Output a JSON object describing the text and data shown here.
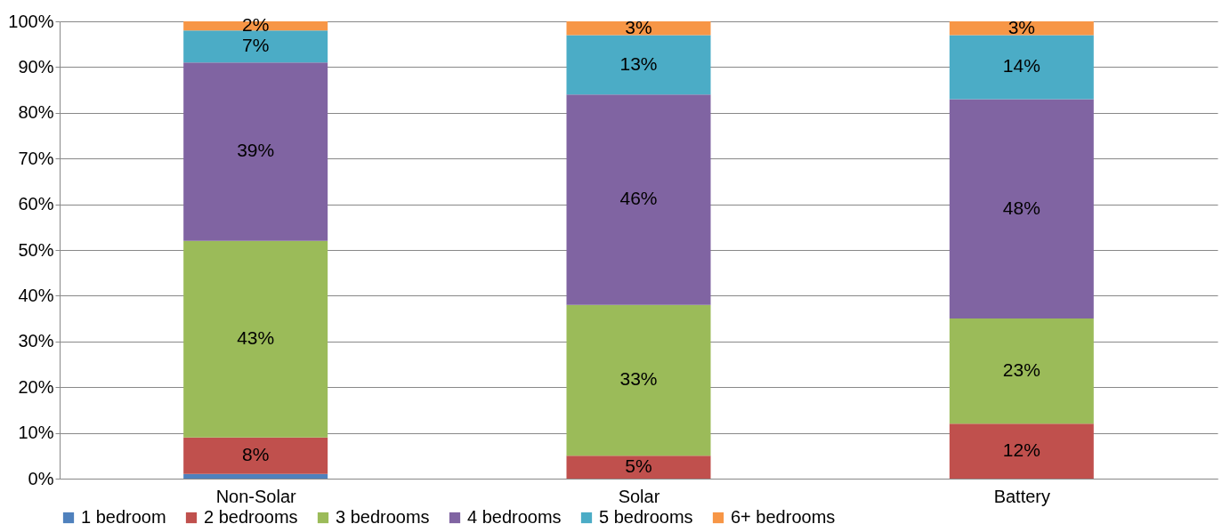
{
  "chart_data": {
    "type": "bar",
    "stacked": true,
    "categories": [
      "Non-Solar",
      "Solar",
      "Battery"
    ],
    "series": [
      {
        "name": "1 bedroom",
        "color": "#4f81bd",
        "values": [
          1,
          0,
          0
        ],
        "value_labels": [
          null,
          null,
          null
        ]
      },
      {
        "name": "2 bedrooms",
        "color": "#c0504d",
        "values": [
          8,
          5,
          12
        ],
        "value_labels": [
          "8%",
          "5%",
          "12%"
        ]
      },
      {
        "name": "3 bedrooms",
        "color": "#9bbb59",
        "values": [
          43,
          33,
          23
        ],
        "value_labels": [
          "43%",
          "33%",
          "23%"
        ]
      },
      {
        "name": "4 bedrooms",
        "color": "#8064a2",
        "values": [
          39,
          46,
          48
        ],
        "value_labels": [
          "39%",
          "46%",
          "48%"
        ]
      },
      {
        "name": "5 bedrooms",
        "color": "#4bacc6",
        "values": [
          7,
          13,
          14
        ],
        "value_labels": [
          "7%",
          "13%",
          "14%"
        ]
      },
      {
        "name": "6+ bedrooms",
        "color": "#f79646",
        "values": [
          2,
          3,
          3
        ],
        "value_labels": [
          "2%",
          "3%",
          "3%"
        ]
      }
    ],
    "ylim": [
      0,
      100
    ],
    "yticks": [
      {
        "value": 0,
        "label": "0%"
      },
      {
        "value": 10,
        "label": "10%"
      },
      {
        "value": 20,
        "label": "20%"
      },
      {
        "value": 30,
        "label": "30%"
      },
      {
        "value": 40,
        "label": "40%"
      },
      {
        "value": 50,
        "label": "50%"
      },
      {
        "value": 60,
        "label": "60%"
      },
      {
        "value": 70,
        "label": "70%"
      },
      {
        "value": 80,
        "label": "80%"
      },
      {
        "value": 90,
        "label": "90%"
      },
      {
        "value": 100,
        "label": "100%"
      }
    ],
    "grid": "y",
    "legend": "bottom"
  }
}
